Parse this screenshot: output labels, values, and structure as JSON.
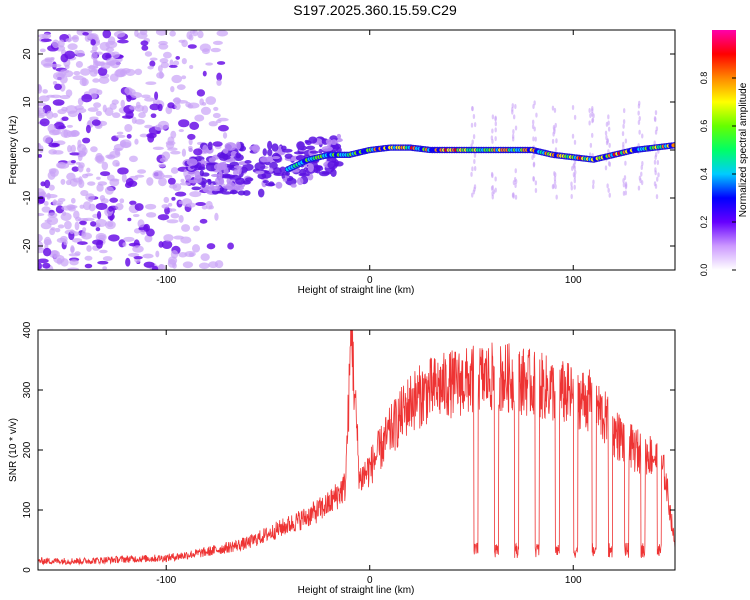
{
  "title": "S197.2025.360.15.59.C29",
  "colors": {
    "snr_line": "#ee3333",
    "axis": "#000000"
  },
  "colorbar": {
    "label": "Normalized spectral amplitude",
    "range": [
      0.0,
      1.0
    ],
    "ticks": [
      "0.0",
      "0.2",
      "0.4",
      "0.6",
      "0.8"
    ],
    "colors": [
      "#ffffff",
      "#cc99ff",
      "#6600ff",
      "#0000ff",
      "#00ccff",
      "#00ff66",
      "#66ff00",
      "#ffff00",
      "#ff8800",
      "#ff0000",
      "#ff00aa"
    ]
  },
  "chart_data": [
    {
      "type": "heatmap",
      "xlabel": "Height of straight line (km)",
      "ylabel": "Frequency (Hz)",
      "xlim": [
        -163,
        150
      ],
      "ylim": [
        -25,
        25
      ],
      "xticks": [
        "-100",
        "0",
        "100"
      ],
      "yticks": [
        "-20",
        "-10",
        "0",
        "10",
        "20"
      ],
      "ridge": {
        "description": "spectral line near 0 Hz",
        "x": [
          -40,
          -30,
          -20,
          -10,
          0,
          10,
          20,
          30,
          40,
          50,
          60,
          70,
          80,
          90,
          100,
          110,
          120,
          130,
          140,
          150
        ],
        "y": [
          -4,
          -2,
          -1,
          -1,
          0,
          0.5,
          0.5,
          0,
          0,
          0,
          0,
          0,
          0,
          -1,
          -1.5,
          -2,
          -1,
          0,
          0.5,
          1
        ]
      }
    },
    {
      "type": "line",
      "xlabel": "Height of straight line (km)",
      "ylabel": "SNR (10 * v/v)",
      "xlim": [
        -163,
        150
      ],
      "ylim": [
        0,
        400
      ],
      "xticks": [
        "-100",
        "0",
        "100"
      ],
      "yticks": [
        "0",
        "100",
        "200",
        "300",
        "400"
      ],
      "x": [
        -163,
        -140,
        -120,
        -100,
        -80,
        -60,
        -50,
        -40,
        -30,
        -20,
        -12,
        -9,
        -5,
        0,
        10,
        20,
        30,
        40,
        50,
        54,
        60,
        70,
        80,
        90,
        100,
        110,
        120,
        130,
        140,
        145,
        150
      ],
      "snr": [
        15,
        15,
        18,
        20,
        30,
        45,
        60,
        75,
        90,
        110,
        140,
        390,
        150,
        170,
        230,
        280,
        300,
        310,
        315,
        320,
        320,
        320,
        310,
        300,
        290,
        280,
        230,
        200,
        190,
        160,
        40
      ],
      "dropouts_x": [
        53,
        63,
        73,
        83,
        93,
        102,
        111,
        119,
        127,
        135,
        143
      ]
    }
  ]
}
